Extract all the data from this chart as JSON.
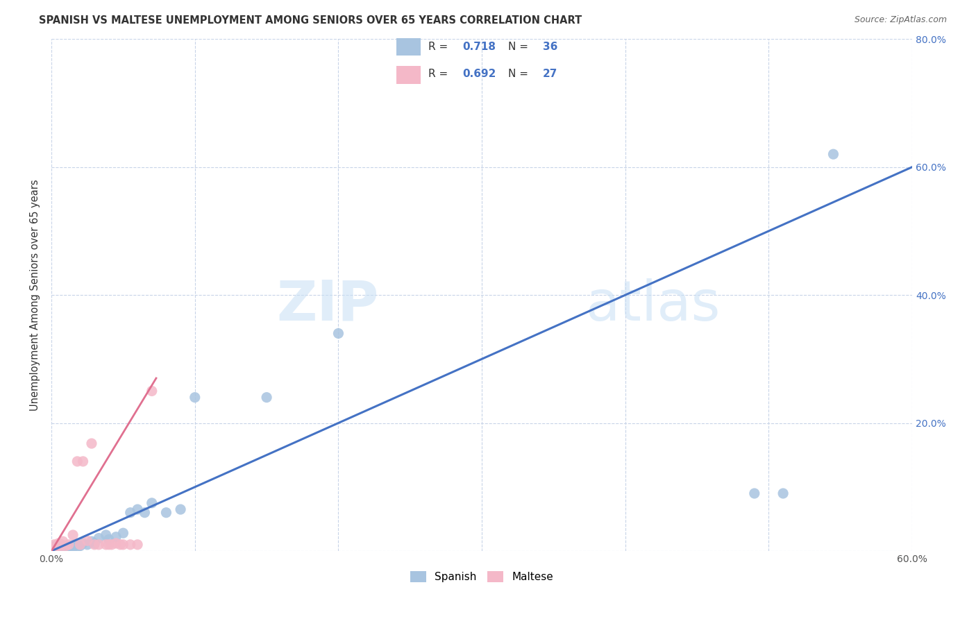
{
  "title": "SPANISH VS MALTESE UNEMPLOYMENT AMONG SENIORS OVER 65 YEARS CORRELATION CHART",
  "source": "Source: ZipAtlas.com",
  "ylabel": "Unemployment Among Seniors over 65 years",
  "xlabel": "",
  "xlim": [
    0,
    0.6
  ],
  "ylim": [
    0,
    0.8
  ],
  "xticks": [
    0.0,
    0.1,
    0.2,
    0.3,
    0.4,
    0.5,
    0.6
  ],
  "yticks": [
    0.0,
    0.2,
    0.4,
    0.6,
    0.8
  ],
  "xtick_labels": [
    "0.0%",
    "",
    "",
    "",
    "",
    "",
    "60.0%"
  ],
  "ytick_labels_right": [
    "",
    "20.0%",
    "40.0%",
    "60.0%",
    "80.0%"
  ],
  "spanish_color": "#a8c4e0",
  "maltese_color": "#f4b8c8",
  "spanish_line_color": "#4472c4",
  "maltese_line_color": "#e07090",
  "diag_color": "#f0a0b0",
  "R_spanish": 0.718,
  "N_spanish": 36,
  "R_maltese": 0.692,
  "N_maltese": 27,
  "legend_label_1": "Spanish",
  "legend_label_2": "Maltese",
  "watermark_zip": "ZIP",
  "watermark_atlas": "atlas",
  "spanish_x": [
    0.002,
    0.003,
    0.004,
    0.005,
    0.006,
    0.007,
    0.008,
    0.009,
    0.01,
    0.012,
    0.013,
    0.015,
    0.016,
    0.018,
    0.02,
    0.022,
    0.025,
    0.028,
    0.03,
    0.033,
    0.038,
    0.04,
    0.045,
    0.05,
    0.055,
    0.06,
    0.065,
    0.07,
    0.08,
    0.09,
    0.1,
    0.15,
    0.2,
    0.49,
    0.51,
    0.545
  ],
  "spanish_y": [
    0.005,
    0.008,
    0.003,
    0.006,
    0.004,
    0.007,
    0.003,
    0.005,
    0.007,
    0.004,
    0.008,
    0.005,
    0.01,
    0.006,
    0.008,
    0.012,
    0.01,
    0.015,
    0.012,
    0.02,
    0.025,
    0.018,
    0.022,
    0.028,
    0.06,
    0.065,
    0.06,
    0.075,
    0.06,
    0.065,
    0.24,
    0.24,
    0.34,
    0.09,
    0.09,
    0.62
  ],
  "maltese_x": [
    0.001,
    0.002,
    0.003,
    0.004,
    0.005,
    0.006,
    0.007,
    0.008,
    0.01,
    0.012,
    0.015,
    0.018,
    0.02,
    0.022,
    0.025,
    0.028,
    0.03,
    0.033,
    0.038,
    0.04,
    0.042,
    0.045,
    0.048,
    0.05,
    0.055,
    0.06,
    0.07
  ],
  "maltese_y": [
    0.005,
    0.01,
    0.006,
    0.008,
    0.012,
    0.006,
    0.01,
    0.015,
    0.008,
    0.01,
    0.025,
    0.14,
    0.01,
    0.14,
    0.016,
    0.168,
    0.01,
    0.01,
    0.01,
    0.01,
    0.01,
    0.012,
    0.01,
    0.01,
    0.01,
    0.01,
    0.25
  ],
  "spanish_line_x": [
    0.0,
    0.6
  ],
  "spanish_line_y": [
    0.0,
    0.6
  ],
  "maltese_line_x0": 0.0,
  "maltese_line_x1": 0.08,
  "maltese_line_y0": 0.0,
  "maltese_line_y1": 0.265
}
